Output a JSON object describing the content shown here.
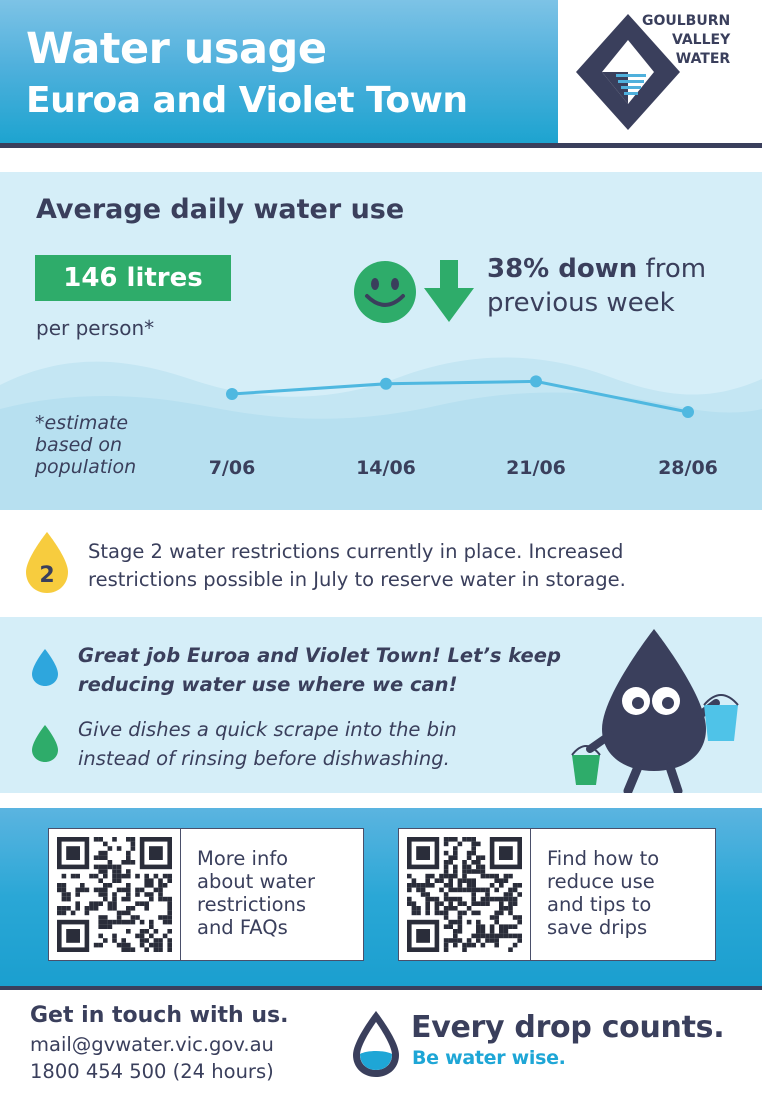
{
  "header": {
    "title": "Water usage",
    "subtitle": "Euroa and Violet Town",
    "logo": {
      "line1": "GOULBURN",
      "line2": "VALLEY",
      "line3": "WATER"
    }
  },
  "usage": {
    "heading": "Average daily water use",
    "litres": "146 litres",
    "per_person": "per person*",
    "change_bold": "38% down",
    "change_rest_1": " from",
    "change_rest_2": "previous week",
    "estimate_line1": "*estimate",
    "estimate_line2": "based on",
    "estimate_line3": "population",
    "icons": [
      "smiley-icon",
      "down-arrow-icon"
    ]
  },
  "chart_data": {
    "type": "line",
    "categories": [
      "7/06",
      "14/06",
      "21/06",
      "28/06"
    ],
    "series": [
      {
        "values": [
          195,
          212,
          216,
          165
        ]
      }
    ],
    "note": "values unlabelled; relative trend estimated from point heights",
    "ylim": [
      140,
      240
    ],
    "color": "#4fb8e0"
  },
  "restrictions": {
    "stage_number": "2",
    "line1": "Stage 2 water restrictions currently in place. Increased",
    "line2": "restrictions possible in July to reserve water in storage."
  },
  "tips": {
    "tip1_line1": "Great job Euroa and Violet Town! Let’s keep",
    "tip1_line2": "reducing water use where we can!",
    "tip2_line1": "Give dishes a quick scrape into the bin",
    "tip2_line2": "instead of rinsing before dishwashing.",
    "colors": {
      "tip1": "#2ea6dd",
      "tip2": "#2eac6a"
    }
  },
  "qr": [
    {
      "line1": "More info",
      "line2": "about water",
      "line3": "restrictions",
      "line4": "and FAQs"
    },
    {
      "line1": "Find how to",
      "line2": "reduce use",
      "line3": "and tips to",
      "line4": "save drips"
    }
  ],
  "footer": {
    "contact_title": "Get in touch with us.",
    "email": "mail@gvwater.vic.gov.au",
    "phone": "1800 454 500 (24 hours)",
    "tagline": "Every drop counts.",
    "tagline_sub": "Be water wise."
  },
  "colors": {
    "navy": "#3a3f5c",
    "green": "#2eac6a",
    "blue": "#1ea6d6",
    "light_bg": "#d5eef8",
    "yellow": "#f7cc3e"
  }
}
